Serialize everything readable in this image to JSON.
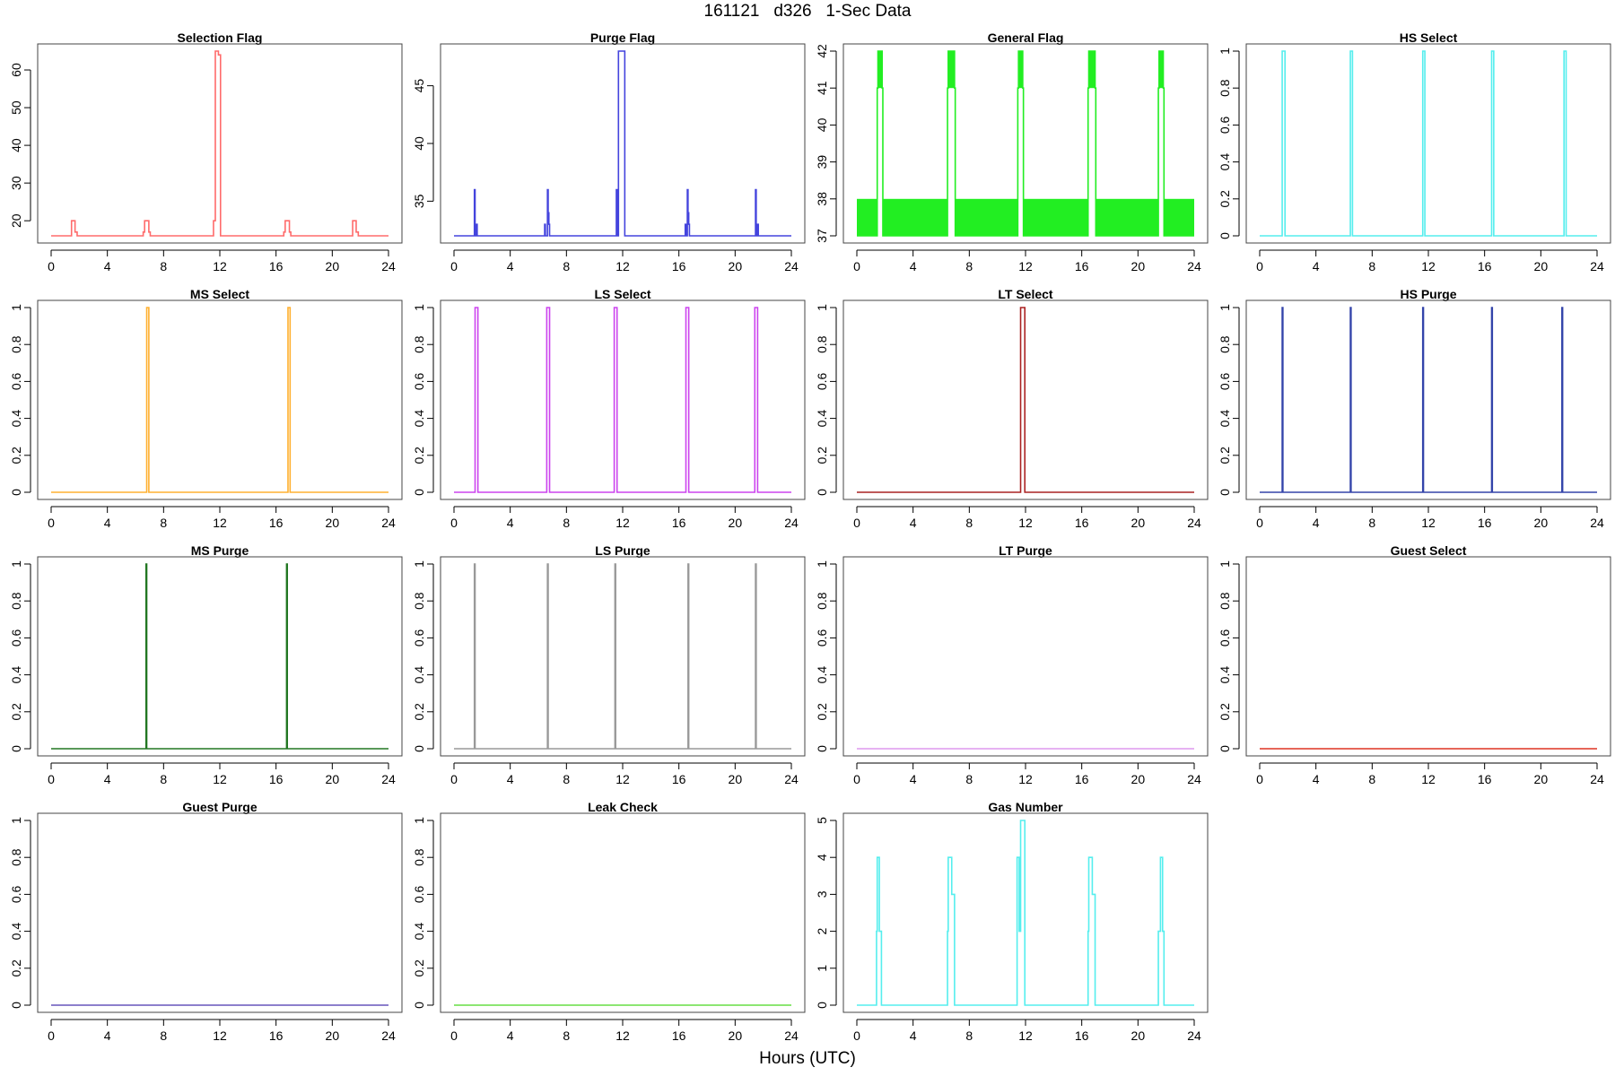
{
  "figure": {
    "title": "161121   d326   1-Sec Data",
    "xlabel": "Hours (UTC)"
  },
  "chart_data": [
    {
      "type": "line",
      "title": "Selection Flag",
      "color": "#ff6b6b",
      "xlim": [
        0,
        24
      ],
      "ylim": [
        16,
        65
      ],
      "xticks": [
        0,
        4,
        8,
        12,
        16,
        20,
        24
      ],
      "yticks": [
        20,
        30,
        40,
        50,
        60
      ],
      "x": [
        0,
        1.45,
        1.45,
        1.7,
        1.7,
        1.85,
        1.85,
        6.55,
        6.55,
        6.65,
        6.65,
        6.95,
        6.95,
        7.05,
        7.05,
        11.55,
        11.55,
        11.68,
        11.68,
        11.9,
        11.9,
        12.05,
        12.05,
        16.55,
        16.55,
        16.65,
        16.65,
        16.95,
        16.95,
        17.05,
        17.05,
        21.45,
        21.45,
        21.7,
        21.7,
        21.85,
        21.85,
        24
      ],
      "y": [
        16,
        16,
        20,
        20,
        17,
        17,
        16,
        16,
        17,
        17,
        20,
        20,
        17,
        17,
        16,
        16,
        20,
        20,
        65,
        65,
        64,
        64,
        16,
        16,
        17,
        17,
        20,
        20,
        17,
        17,
        16,
        16,
        20,
        20,
        17,
        17,
        16,
        16
      ]
    },
    {
      "type": "line",
      "title": "Purge Flag",
      "color": "#4444dd",
      "xlim": [
        0,
        24
      ],
      "ylim": [
        32,
        48
      ],
      "xticks": [
        0,
        4,
        8,
        12,
        16,
        20,
        24
      ],
      "yticks": [
        35,
        40,
        45
      ],
      "x": [
        0,
        1.45,
        1.45,
        1.5,
        1.5,
        1.6,
        1.6,
        1.65,
        1.65,
        6.45,
        6.45,
        6.5,
        6.5,
        6.65,
        6.65,
        6.7,
        6.7,
        6.75,
        6.75,
        6.8,
        6.8,
        11.55,
        11.55,
        11.6,
        11.6,
        11.65,
        11.65,
        11.7,
        11.7,
        11.8,
        11.8,
        12.15,
        12.15,
        16.45,
        16.45,
        16.5,
        16.5,
        16.6,
        16.6,
        16.65,
        16.65,
        16.7,
        16.7,
        16.75,
        16.75,
        21.45,
        21.45,
        21.5,
        21.5,
        21.6,
        21.6,
        21.65,
        21.65,
        24
      ],
      "y": [
        32,
        32,
        36,
        36,
        32,
        32,
        33,
        33,
        32,
        32,
        33,
        33,
        32,
        32,
        36,
        36,
        34,
        34,
        33,
        33,
        32,
        32,
        36,
        36,
        33,
        33,
        32,
        32,
        48,
        48,
        48,
        48,
        32,
        32,
        33,
        33,
        32,
        32,
        36,
        36,
        34,
        34,
        33,
        33,
        32,
        32,
        36,
        36,
        32,
        32,
        33,
        33,
        32,
        32
      ]
    },
    {
      "type": "line",
      "title": "General Flag",
      "color": "#22ee22",
      "xlim": [
        0,
        24
      ],
      "ylim": [
        37,
        42
      ],
      "xticks": [
        0,
        4,
        8,
        12,
        16,
        20,
        24
      ],
      "yticks": [
        37,
        38,
        39,
        40,
        41,
        42
      ],
      "x": [
        0,
        1.45,
        1.45,
        1.5,
        1.5,
        1.8,
        1.8,
        1.85,
        1.85,
        6.45,
        6.45,
        6.5,
        6.5,
        6.95,
        6.95,
        7.0,
        7.0,
        11.45,
        11.45,
        11.5,
        11.5,
        11.8,
        11.8,
        11.85,
        11.85,
        16.45,
        16.45,
        16.5,
        16.5,
        16.95,
        16.95,
        17.0,
        17.0,
        21.45,
        21.45,
        21.5,
        21.5,
        21.8,
        21.8,
        21.85,
        21.85,
        24
      ],
      "y": [
        37,
        37,
        41,
        41,
        42,
        42,
        41,
        41,
        37,
        37,
        41,
        41,
        42,
        42,
        41,
        41,
        37,
        37,
        41,
        41,
        42,
        42,
        41,
        41,
        37,
        37,
        41,
        41,
        42,
        42,
        41,
        41,
        37,
        37,
        41,
        41,
        42,
        42,
        41,
        41,
        37,
        37
      ],
      "bands": [
        [
          0,
          1.45,
          37,
          38
        ],
        [
          1.85,
          6.45,
          37,
          38
        ],
        [
          7.0,
          11.45,
          37,
          38
        ],
        [
          11.85,
          16.45,
          37,
          38
        ],
        [
          17.0,
          21.45,
          37,
          38
        ],
        [
          21.85,
          24,
          37,
          38
        ],
        [
          1.5,
          1.8,
          41,
          42
        ],
        [
          6.5,
          6.95,
          41,
          42
        ],
        [
          11.5,
          11.8,
          41,
          42
        ],
        [
          16.5,
          16.95,
          41,
          42
        ],
        [
          21.5,
          21.8,
          41,
          42
        ]
      ]
    },
    {
      "type": "line",
      "title": "HS Select",
      "color": "#55eeee",
      "xlim": [
        0,
        24
      ],
      "ylim": [
        0,
        1
      ],
      "xticks": [
        0,
        4,
        8,
        12,
        16,
        20,
        24
      ],
      "yticks": [
        0.0,
        0.2,
        0.4,
        0.6,
        0.8,
        1.0
      ],
      "x": [
        0,
        1.6,
        1.6,
        1.8,
        1.8,
        6.45,
        6.45,
        6.6,
        6.6,
        11.6,
        11.6,
        11.75,
        11.75,
        16.5,
        16.5,
        16.65,
        16.65,
        21.65,
        21.65,
        21.8,
        21.8,
        24
      ],
      "y": [
        0,
        0,
        1,
        1,
        0,
        0,
        1,
        1,
        0,
        0,
        1,
        1,
        0,
        0,
        1,
        1,
        0,
        0,
        1,
        1,
        0,
        0
      ]
    },
    {
      "type": "line",
      "title": "MS Select",
      "color": "#ffb030",
      "xlim": [
        0,
        24
      ],
      "ylim": [
        0,
        1
      ],
      "xticks": [
        0,
        4,
        8,
        12,
        16,
        20,
        24
      ],
      "yticks": [
        0.0,
        0.2,
        0.4,
        0.6,
        0.8,
        1.0
      ],
      "x": [
        0,
        6.8,
        6.8,
        6.95,
        6.95,
        16.85,
        16.85,
        17.0,
        17.0,
        24
      ],
      "y": [
        0,
        0,
        1,
        1,
        0,
        0,
        1,
        1,
        0,
        0
      ]
    },
    {
      "type": "line",
      "title": "LS Select",
      "color": "#cc44ee",
      "xlim": [
        0,
        24
      ],
      "ylim": [
        0,
        1
      ],
      "xticks": [
        0,
        4,
        8,
        12,
        16,
        20,
        24
      ],
      "yticks": [
        0.0,
        0.2,
        0.4,
        0.6,
        0.8,
        1.0
      ],
      "x": [
        0,
        1.5,
        1.5,
        1.7,
        1.7,
        6.6,
        6.6,
        6.8,
        6.8,
        11.4,
        11.4,
        11.6,
        11.6,
        16.5,
        16.5,
        16.7,
        16.7,
        21.4,
        21.4,
        21.6,
        21.6,
        24
      ],
      "y": [
        0,
        0,
        1,
        1,
        0,
        0,
        1,
        1,
        0,
        0,
        1,
        1,
        0,
        0,
        1,
        1,
        0,
        0,
        1,
        1,
        0,
        0
      ]
    },
    {
      "type": "line",
      "title": "LT Select",
      "color": "#aa2222",
      "xlim": [
        0,
        24
      ],
      "ylim": [
        0,
        1
      ],
      "xticks": [
        0,
        4,
        8,
        12,
        16,
        20,
        24
      ],
      "yticks": [
        0.0,
        0.2,
        0.4,
        0.6,
        0.8,
        1.0
      ],
      "x": [
        0,
        11.65,
        11.65,
        11.95,
        11.95,
        24
      ],
      "y": [
        0,
        0,
        1,
        1,
        0,
        0
      ]
    },
    {
      "type": "line",
      "title": "HS Purge",
      "color": "#3344aa",
      "xlim": [
        0,
        24
      ],
      "ylim": [
        0,
        1
      ],
      "xticks": [
        0,
        4,
        8,
        12,
        16,
        20,
        24
      ],
      "yticks": [
        0.0,
        0.2,
        0.4,
        0.6,
        0.8,
        1.0
      ],
      "x": [
        0,
        1.6,
        1.6,
        1.65,
        1.65,
        6.45,
        6.45,
        6.5,
        6.5,
        11.6,
        11.6,
        11.65,
        11.65,
        16.5,
        16.5,
        16.55,
        16.55,
        21.5,
        21.5,
        21.55,
        21.55,
        24
      ],
      "y": [
        0,
        0,
        1,
        1,
        0,
        0,
        1,
        1,
        0,
        0,
        1,
        1,
        0,
        0,
        1,
        1,
        0,
        0,
        1,
        1,
        0,
        0
      ]
    },
    {
      "type": "line",
      "title": "MS Purge",
      "color": "#227722",
      "xlim": [
        0,
        24
      ],
      "ylim": [
        0,
        1
      ],
      "xticks": [
        0,
        4,
        8,
        12,
        16,
        20,
        24
      ],
      "yticks": [
        0.0,
        0.2,
        0.4,
        0.6,
        0.8,
        1.0
      ],
      "x": [
        0,
        6.75,
        6.75,
        6.8,
        6.8,
        16.75,
        16.75,
        16.8,
        16.8,
        24
      ],
      "y": [
        0,
        0,
        1,
        1,
        0,
        0,
        1,
        1,
        0,
        0
      ]
    },
    {
      "type": "line",
      "title": "LS Purge",
      "color": "#999999",
      "xlim": [
        0,
        24
      ],
      "ylim": [
        0,
        1
      ],
      "xticks": [
        0,
        4,
        8,
        12,
        16,
        20,
        24
      ],
      "yticks": [
        0.0,
        0.2,
        0.4,
        0.6,
        0.8,
        1.0
      ],
      "x": [
        0,
        1.45,
        1.45,
        1.5,
        1.5,
        6.65,
        6.65,
        6.7,
        6.7,
        11.45,
        11.45,
        11.5,
        11.5,
        16.65,
        16.65,
        16.7,
        16.7,
        21.45,
        21.45,
        21.5,
        21.5,
        24
      ],
      "y": [
        0,
        0,
        1,
        1,
        0,
        0,
        1,
        1,
        0,
        0,
        1,
        1,
        0,
        0,
        1,
        1,
        0,
        0,
        1,
        1,
        0,
        0
      ]
    },
    {
      "type": "line",
      "title": "LT Purge",
      "color": "#dd99ee",
      "xlim": [
        0,
        24
      ],
      "ylim": [
        0,
        1
      ],
      "xticks": [
        0,
        4,
        8,
        12,
        16,
        20,
        24
      ],
      "yticks": [
        0.0,
        0.2,
        0.4,
        0.6,
        0.8,
        1.0
      ],
      "x": [
        0,
        24
      ],
      "y": [
        0,
        0
      ]
    },
    {
      "type": "line",
      "title": "Guest Select",
      "color": "#dd3322",
      "xlim": [
        0,
        24
      ],
      "ylim": [
        0,
        1
      ],
      "xticks": [
        0,
        4,
        8,
        12,
        16,
        20,
        24
      ],
      "yticks": [
        0.0,
        0.2,
        0.4,
        0.6,
        0.8,
        1.0
      ],
      "x": [
        0,
        24
      ],
      "y": [
        0,
        0
      ]
    },
    {
      "type": "line",
      "title": "Guest Purge",
      "color": "#6655bb",
      "xlim": [
        0,
        24
      ],
      "ylim": [
        0,
        1
      ],
      "xticks": [
        0,
        4,
        8,
        12,
        16,
        20,
        24
      ],
      "yticks": [
        0.0,
        0.2,
        0.4,
        0.6,
        0.8,
        1.0
      ],
      "x": [
        0,
        24
      ],
      "y": [
        0,
        0
      ]
    },
    {
      "type": "line",
      "title": "Leak Check",
      "color": "#66dd44",
      "xlim": [
        0,
        24
      ],
      "ylim": [
        0,
        1
      ],
      "xticks": [
        0,
        4,
        8,
        12,
        16,
        20,
        24
      ],
      "yticks": [
        0.0,
        0.2,
        0.4,
        0.6,
        0.8,
        1.0
      ],
      "x": [
        0,
        24
      ],
      "y": [
        0,
        0
      ]
    },
    {
      "type": "line",
      "title": "Gas Number",
      "color": "#55eeee",
      "xlim": [
        0,
        24
      ],
      "ylim": [
        0,
        5
      ],
      "xticks": [
        0,
        4,
        8,
        12,
        16,
        20,
        24
      ],
      "yticks": [
        0,
        1,
        2,
        3,
        4,
        5
      ],
      "x": [
        0,
        1.4,
        1.4,
        1.45,
        1.45,
        1.6,
        1.6,
        1.75,
        1.75,
        1.85,
        1.85,
        6.45,
        6.45,
        6.5,
        6.5,
        6.75,
        6.75,
        6.95,
        6.95,
        7.05,
        7.05,
        11.4,
        11.4,
        11.55,
        11.55,
        11.65,
        11.65,
        11.75,
        11.75,
        11.95,
        11.95,
        12.05,
        12.05,
        16.45,
        16.45,
        16.5,
        16.5,
        16.75,
        16.75,
        16.95,
        16.95,
        17.05,
        17.05,
        21.45,
        21.45,
        21.6,
        21.6,
        21.75,
        21.75,
        21.85,
        21.85,
        24
      ],
      "y": [
        0,
        0,
        2,
        2,
        4,
        4,
        2,
        2,
        0,
        0,
        0,
        0,
        2,
        2,
        4,
        4,
        3,
        3,
        0,
        0,
        0,
        0,
        4,
        4,
        2,
        2,
        5,
        5,
        5,
        5,
        0,
        0,
        0,
        0,
        2,
        2,
        4,
        4,
        3,
        3,
        0,
        0,
        0,
        0,
        2,
        2,
        4,
        4,
        2,
        2,
        0,
        0
      ]
    }
  ]
}
